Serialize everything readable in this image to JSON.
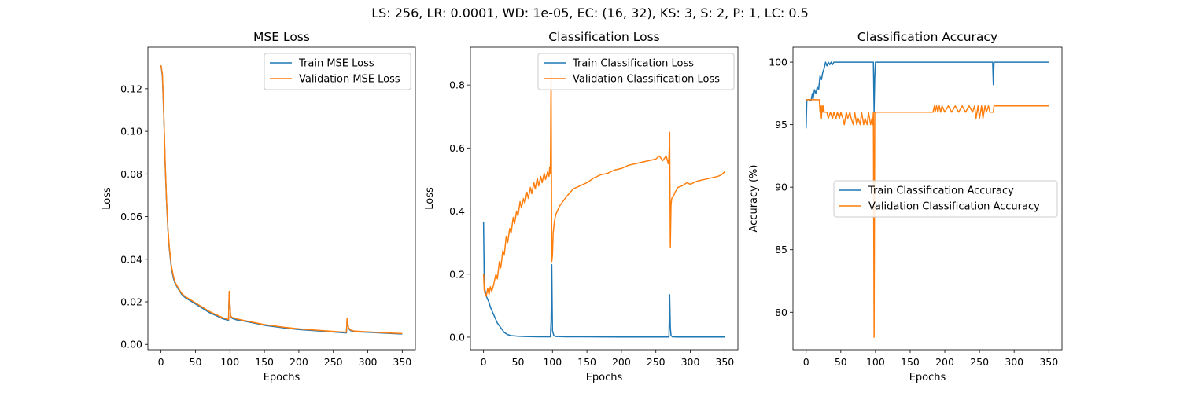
{
  "suptitle": "LS: 256, LR: 0.0001, WD: 1e-05, EC: (16, 32), KS: 3, S: 2, P: 1, LC: 0.5",
  "colors": {
    "train": "#1f77b4",
    "validation": "#ff7f0e"
  },
  "chart_data": [
    {
      "type": "line",
      "title": "MSE Loss",
      "xlabel": "Epochs",
      "ylabel": "Loss",
      "xlim": [
        -19,
        369
      ],
      "ylim": [
        -0.0025,
        0.1395
      ],
      "xticks": [
        0,
        50,
        100,
        150,
        200,
        250,
        300,
        350
      ],
      "yticks": [
        0.0,
        0.02,
        0.04,
        0.06,
        0.08,
        0.1,
        0.12
      ],
      "ytick_labels": [
        "0.00",
        "0.02",
        "0.04",
        "0.06",
        "0.08",
        "0.10",
        "0.12"
      ],
      "legend": "upper right",
      "series": [
        {
          "name": "Train MSE Loss",
          "x": [
            0,
            2,
            4,
            6,
            8,
            10,
            12,
            15,
            18,
            20,
            25,
            30,
            35,
            40,
            50,
            60,
            70,
            80,
            90,
            98,
            99,
            101,
            103,
            110,
            120,
            150,
            180,
            200,
            230,
            260,
            269,
            270,
            272,
            275,
            280,
            300,
            330,
            350
          ],
          "y": [
            0.131,
            0.126,
            0.108,
            0.085,
            0.067,
            0.054,
            0.045,
            0.036,
            0.031,
            0.029,
            0.026,
            0.0235,
            0.022,
            0.021,
            0.019,
            0.017,
            0.015,
            0.0135,
            0.012,
            0.0113,
            0.0245,
            0.0132,
            0.0123,
            0.0115,
            0.011,
            0.009,
            0.0077,
            0.007,
            0.0063,
            0.0056,
            0.0054,
            0.0115,
            0.0075,
            0.0065,
            0.006,
            0.0057,
            0.0052,
            0.0049
          ]
        },
        {
          "name": "Validation MSE Loss",
          "x": [
            0,
            2,
            4,
            6,
            8,
            10,
            12,
            15,
            18,
            20,
            25,
            30,
            35,
            40,
            50,
            60,
            70,
            80,
            90,
            98,
            99,
            101,
            103,
            110,
            120,
            150,
            180,
            200,
            230,
            260,
            269,
            270,
            272,
            275,
            280,
            300,
            330,
            350
          ],
          "y": [
            0.131,
            0.127,
            0.109,
            0.086,
            0.068,
            0.055,
            0.046,
            0.037,
            0.032,
            0.0295,
            0.0265,
            0.024,
            0.0225,
            0.0215,
            0.0195,
            0.0175,
            0.0155,
            0.014,
            0.0125,
            0.0117,
            0.025,
            0.0135,
            0.0127,
            0.012,
            0.0113,
            0.0093,
            0.008,
            0.0073,
            0.0066,
            0.0059,
            0.0057,
            0.0122,
            0.0079,
            0.0068,
            0.0063,
            0.0059,
            0.0054,
            0.0051
          ]
        }
      ]
    },
    {
      "type": "line",
      "title": "Classification Loss",
      "xlabel": "Epochs",
      "ylabel": "Loss",
      "xlim": [
        -19,
        369
      ],
      "ylim": [
        -0.04,
        0.92
      ],
      "xticks": [
        0,
        50,
        100,
        150,
        200,
        250,
        300,
        350
      ],
      "yticks": [
        0.0,
        0.2,
        0.4,
        0.6,
        0.8
      ],
      "ytick_labels": [
        "0.0",
        "0.2",
        "0.4",
        "0.6",
        "0.8"
      ],
      "legend": "upper right",
      "series": [
        {
          "name": "Train Classification Loss",
          "x": [
            0,
            1,
            2,
            4,
            6,
            8,
            10,
            12,
            15,
            18,
            20,
            25,
            30,
            35,
            40,
            50,
            60,
            80,
            97,
            98,
            99,
            100,
            102,
            105,
            120,
            150,
            200,
            250,
            269,
            270,
            271,
            272,
            274,
            280,
            300,
            350
          ],
          "y": [
            0.365,
            0.18,
            0.15,
            0.13,
            0.12,
            0.11,
            0.095,
            0.085,
            0.07,
            0.055,
            0.045,
            0.03,
            0.015,
            0.008,
            0.005,
            0.003,
            0.002,
            0.001,
            0.001,
            0.05,
            0.23,
            0.02,
            0.005,
            0.002,
            0.001,
            0.001,
            0.0005,
            0.0005,
            0.0005,
            0.135,
            0.03,
            0.005,
            0.001,
            0.0005,
            0.0005,
            0.0005
          ]
        },
        {
          "name": "Validation Classification Loss",
          "x": [
            0,
            1,
            2,
            4,
            6,
            8,
            10,
            12,
            15,
            18,
            20,
            23,
            25,
            28,
            30,
            33,
            35,
            38,
            40,
            43,
            45,
            48,
            50,
            53,
            55,
            58,
            60,
            63,
            65,
            68,
            70,
            73,
            75,
            78,
            80,
            83,
            85,
            88,
            90,
            93,
            95,
            96,
            97,
            98,
            99,
            100,
            101,
            103,
            105,
            108,
            110,
            115,
            120,
            130,
            140,
            150,
            160,
            170,
            180,
            190,
            200,
            210,
            220,
            230,
            240,
            250,
            255,
            260,
            265,
            268,
            269,
            270,
            271,
            272,
            273,
            275,
            278,
            282,
            288,
            295,
            300,
            310,
            320,
            330,
            340,
            345,
            350
          ],
          "y": [
            0.2,
            0.15,
            0.14,
            0.13,
            0.155,
            0.135,
            0.16,
            0.145,
            0.17,
            0.2,
            0.185,
            0.24,
            0.22,
            0.275,
            0.26,
            0.32,
            0.3,
            0.345,
            0.33,
            0.38,
            0.36,
            0.4,
            0.385,
            0.43,
            0.41,
            0.44,
            0.425,
            0.46,
            0.44,
            0.475,
            0.455,
            0.49,
            0.47,
            0.505,
            0.48,
            0.51,
            0.49,
            0.52,
            0.5,
            0.525,
            0.51,
            0.54,
            0.52,
            0.86,
            0.24,
            0.26,
            0.33,
            0.37,
            0.39,
            0.405,
            0.415,
            0.43,
            0.445,
            0.47,
            0.48,
            0.49,
            0.505,
            0.515,
            0.52,
            0.53,
            0.535,
            0.545,
            0.55,
            0.555,
            0.56,
            0.565,
            0.575,
            0.56,
            0.575,
            0.55,
            0.57,
            0.65,
            0.285,
            0.42,
            0.44,
            0.445,
            0.46,
            0.475,
            0.48,
            0.49,
            0.485,
            0.495,
            0.5,
            0.505,
            0.51,
            0.515,
            0.525
          ]
        }
      ]
    },
    {
      "type": "line",
      "title": "Classification Accuracy",
      "xlabel": "Epochs",
      "ylabel": "Accuracy (%)",
      "xlim": [
        -19,
        369
      ],
      "ylim": [
        77.0,
        101.2
      ],
      "xticks": [
        0,
        50,
        100,
        150,
        200,
        250,
        300,
        350
      ],
      "yticks": [
        80,
        85,
        90,
        95,
        100
      ],
      "ytick_labels": [
        "80",
        "85",
        "90",
        "95",
        "100"
      ],
      "legend": "center right",
      "series": [
        {
          "name": "Train Classification Accuracy",
          "x": [
            0,
            1,
            3,
            5,
            7,
            9,
            10,
            12,
            14,
            16,
            18,
            20,
            22,
            24,
            26,
            28,
            30,
            32,
            34,
            36,
            38,
            40,
            60,
            96,
            97,
            98,
            99,
            100,
            150,
            200,
            269,
            270,
            271,
            272,
            300,
            350
          ],
          "y": [
            94.7,
            97.0,
            97.0,
            97.0,
            96.9,
            97.5,
            97.0,
            97.8,
            97.5,
            98.0,
            97.8,
            98.9,
            98.6,
            99.2,
            99.5,
            100.0,
            99.7,
            100.0,
            99.8,
            100.0,
            99.8,
            100.0,
            100.0,
            100.0,
            100.0,
            96.0,
            98.8,
            100.0,
            100.0,
            100.0,
            100.0,
            98.2,
            100.0,
            100.0,
            100.0,
            100.0
          ]
        },
        {
          "name": "Validation Classification Accuracy",
          "x": [
            0,
            1,
            5,
            10,
            15,
            19,
            20,
            21,
            22,
            23,
            24,
            25,
            26,
            28,
            30,
            32,
            35,
            38,
            40,
            43,
            45,
            48,
            50,
            53,
            55,
            58,
            60,
            63,
            65,
            68,
            70,
            73,
            75,
            78,
            80,
            83,
            85,
            88,
            90,
            93,
            95,
            96,
            97,
            98,
            99,
            100,
            120,
            150,
            183,
            185,
            186,
            188,
            190,
            192,
            194,
            196,
            200,
            205,
            210,
            215,
            220,
            225,
            230,
            235,
            240,
            243,
            245,
            248,
            250,
            253,
            255,
            258,
            260,
            263,
            265,
            270,
            271,
            272,
            300,
            350
          ],
          "y": [
            97.0,
            97.0,
            97.0,
            97.0,
            97.0,
            97.0,
            96.0,
            96.5,
            95.5,
            96.5,
            96.0,
            96.5,
            96.0,
            96.0,
            96.0,
            95.5,
            96.0,
            95.5,
            96.0,
            95.5,
            96.0,
            95.5,
            96.0,
            95.5,
            95.0,
            96.0,
            95.5,
            96.0,
            95.5,
            95.0,
            96.0,
            95.0,
            95.5,
            95.0,
            96.0,
            95.0,
            95.5,
            95.0,
            96.0,
            95.0,
            95.5,
            95.0,
            96.0,
            78.0,
            96.0,
            96.0,
            96.0,
            96.0,
            96.0,
            96.5,
            96.0,
            96.5,
            96.0,
            96.5,
            96.0,
            96.5,
            96.0,
            96.5,
            96.0,
            96.5,
            96.0,
            96.5,
            96.0,
            96.5,
            96.0,
            96.5,
            95.5,
            96.5,
            95.5,
            96.5,
            95.5,
            96.5,
            96.0,
            96.5,
            96.0,
            96.0,
            96.5,
            96.5,
            96.5,
            96.5
          ]
        }
      ]
    }
  ]
}
